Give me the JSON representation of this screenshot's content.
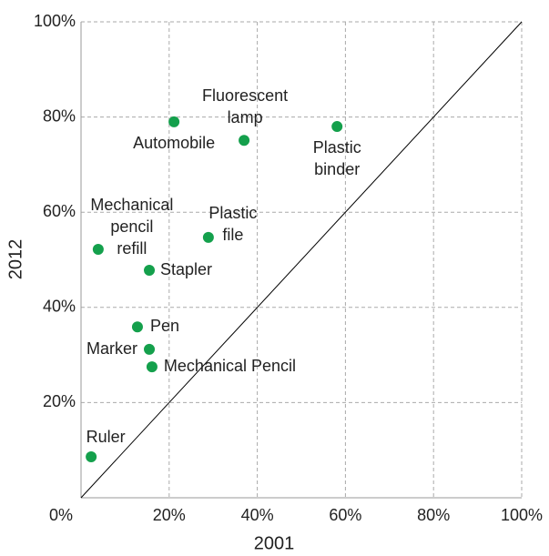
{
  "chart_data": {
    "type": "scatter",
    "x_label": "2001",
    "y_label": "2012",
    "labels": [
      [
        "Ruler"
      ],
      [
        "Mechanical",
        "pencil",
        "refill"
      ],
      [
        "Automobile"
      ],
      [
        "Fluorescent",
        "lamp"
      ],
      [
        "Plastic",
        "binder"
      ],
      [
        "Plastic",
        "file"
      ],
      [
        "Stapler"
      ],
      [
        "Pen"
      ],
      [
        "Marker"
      ],
      [
        "Mechanical Pencil"
      ]
    ],
    "x": [
      2.3,
      3.9,
      21.1,
      37.0,
      58.1,
      28.9,
      15.5,
      12.8,
      15.5,
      16.1
    ],
    "values": [
      8.6,
      52.2,
      79.0,
      75.1,
      78.0,
      54.7,
      47.8,
      35.9,
      31.2,
      27.5
    ],
    "color": "#14a04c",
    "xlim": [
      0,
      100
    ],
    "xticks": [
      {
        "value": 0,
        "label": "0%"
      },
      {
        "value": 20,
        "label": "20%"
      },
      {
        "value": 40,
        "label": "40%"
      },
      {
        "value": 60,
        "label": "60%"
      },
      {
        "value": 80,
        "label": "80%"
      },
      {
        "value": 100,
        "label": "100%"
      }
    ],
    "ylim": [
      0,
      100
    ],
    "yticks": [
      {
        "value": 20,
        "label": "20%"
      },
      {
        "value": 40,
        "label": "40%"
      },
      {
        "value": 60,
        "label": "60%"
      },
      {
        "value": 80,
        "label": "80%"
      },
      {
        "value": 100,
        "label": "100%"
      }
    ],
    "grid": true
  }
}
